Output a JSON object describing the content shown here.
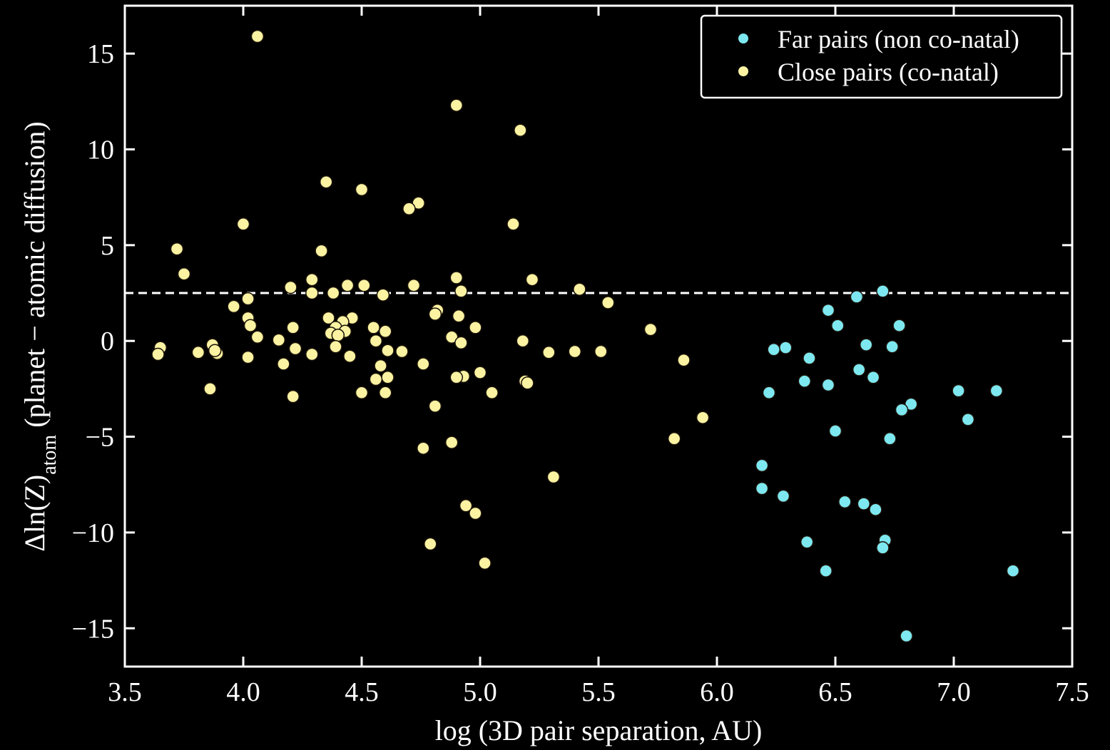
{
  "chart_data": {
    "type": "scatter",
    "title": "",
    "xlabel": "log (3D pair separation, AU)",
    "ylabel_parts": {
      "prefix": "Δln(Z)",
      "subscript": "atom",
      "suffix": " (planet − atomic diffusion)"
    },
    "xlim": [
      3.5,
      7.5
    ],
    "ylim": [
      -17,
      17.5
    ],
    "xticks": [
      3.5,
      4.0,
      4.5,
      5.0,
      5.5,
      6.0,
      6.5,
      7.0,
      7.5
    ],
    "xtick_labels": [
      "3.5",
      "4.0",
      "4.5",
      "5.0",
      "5.5",
      "6.0",
      "6.5",
      "7.0",
      "7.5"
    ],
    "yticks": [
      -15,
      -10,
      -5,
      0,
      5,
      10,
      15
    ],
    "ytick_labels": [
      "−15",
      "−10",
      "−5",
      "0",
      "5",
      "10",
      "15"
    ],
    "reference_line": {
      "y": 2.5,
      "style": "dashed"
    },
    "legend_position": "top-right",
    "series": [
      {
        "name": "Far pairs (non co-natal)",
        "color": "#7ee8f0",
        "points": [
          [
            6.7,
            2.6
          ],
          [
            6.59,
            2.3
          ],
          [
            6.47,
            1.6
          ],
          [
            6.51,
            0.8
          ],
          [
            6.77,
            0.8
          ],
          [
            6.63,
            -0.2
          ],
          [
            6.74,
            -0.3
          ],
          [
            6.29,
            -0.35
          ],
          [
            6.24,
            -0.45
          ],
          [
            6.39,
            -0.9
          ],
          [
            6.6,
            -1.5
          ],
          [
            6.37,
            -2.1
          ],
          [
            6.47,
            -2.3
          ],
          [
            6.66,
            -1.9
          ],
          [
            6.22,
            -2.7
          ],
          [
            7.02,
            -2.6
          ],
          [
            7.18,
            -2.6
          ],
          [
            6.82,
            -3.3
          ],
          [
            6.78,
            -3.6
          ],
          [
            7.06,
            -4.1
          ],
          [
            6.5,
            -4.7
          ],
          [
            6.73,
            -5.1
          ],
          [
            6.19,
            -6.5
          ],
          [
            6.19,
            -7.7
          ],
          [
            6.28,
            -8.1
          ],
          [
            6.54,
            -8.4
          ],
          [
            6.62,
            -8.5
          ],
          [
            6.67,
            -8.8
          ],
          [
            6.38,
            -10.5
          ],
          [
            6.71,
            -10.4
          ],
          [
            6.7,
            -10.8
          ],
          [
            6.46,
            -12.0
          ],
          [
            7.25,
            -12.0
          ],
          [
            6.8,
            -15.4
          ]
        ]
      },
      {
        "name": "Close pairs (co-natal)",
        "color": "#fbf3a2",
        "points": [
          [
            4.06,
            15.9
          ],
          [
            4.9,
            12.3
          ],
          [
            5.17,
            11.0
          ],
          [
            4.35,
            8.3
          ],
          [
            4.5,
            7.9
          ],
          [
            4.74,
            7.2
          ],
          [
            4.7,
            6.9
          ],
          [
            4.0,
            6.1
          ],
          [
            5.14,
            6.1
          ],
          [
            3.72,
            4.8
          ],
          [
            4.33,
            4.7
          ],
          [
            3.75,
            3.5
          ],
          [
            4.9,
            3.3
          ],
          [
            4.29,
            3.2
          ],
          [
            5.22,
            3.2
          ],
          [
            4.44,
            2.9
          ],
          [
            4.51,
            2.9
          ],
          [
            4.72,
            2.9
          ],
          [
            4.2,
            2.8
          ],
          [
            5.42,
            2.7
          ],
          [
            4.92,
            2.6
          ],
          [
            4.29,
            2.5
          ],
          [
            4.38,
            2.5
          ],
          [
            4.59,
            2.4
          ],
          [
            4.02,
            2.2
          ],
          [
            5.54,
            2.0
          ],
          [
            3.96,
            1.8
          ],
          [
            4.82,
            1.6
          ],
          [
            4.81,
            1.4
          ],
          [
            4.02,
            1.2
          ],
          [
            4.36,
            1.2
          ],
          [
            4.46,
            1.2
          ],
          [
            4.91,
            1.3
          ],
          [
            4.42,
            1.0
          ],
          [
            4.03,
            0.8
          ],
          [
            4.21,
            0.7
          ],
          [
            4.39,
            0.7
          ],
          [
            4.55,
            0.7
          ],
          [
            4.98,
            0.7
          ],
          [
            5.72,
            0.6
          ],
          [
            4.43,
            0.5
          ],
          [
            4.6,
            0.5
          ],
          [
            4.37,
            0.4
          ],
          [
            4.4,
            0.3
          ],
          [
            4.06,
            0.2
          ],
          [
            4.88,
            0.2
          ],
          [
            4.15,
            0.05
          ],
          [
            4.56,
            0.0
          ],
          [
            5.18,
            0.0
          ],
          [
            4.92,
            -0.1
          ],
          [
            3.87,
            -0.2
          ],
          [
            4.39,
            -0.3
          ],
          [
            3.65,
            -0.35
          ],
          [
            4.22,
            -0.4
          ],
          [
            4.61,
            -0.5
          ],
          [
            4.67,
            -0.55
          ],
          [
            3.81,
            -0.6
          ],
          [
            3.89,
            -0.65
          ],
          [
            5.29,
            -0.6
          ],
          [
            5.4,
            -0.55
          ],
          [
            5.51,
            -0.55
          ],
          [
            3.88,
            -0.5
          ],
          [
            3.64,
            -0.7
          ],
          [
            4.29,
            -0.7
          ],
          [
            4.02,
            -0.85
          ],
          [
            4.45,
            -0.8
          ],
          [
            5.86,
            -1.0
          ],
          [
            4.17,
            -1.2
          ],
          [
            4.76,
            -1.2
          ],
          [
            4.58,
            -1.3
          ],
          [
            5.0,
            -1.65
          ],
          [
            4.93,
            -1.85
          ],
          [
            4.61,
            -1.9
          ],
          [
            4.9,
            -1.9
          ],
          [
            4.56,
            -2.0
          ],
          [
            5.19,
            -2.1
          ],
          [
            5.2,
            -2.2
          ],
          [
            3.86,
            -2.5
          ],
          [
            4.5,
            -2.7
          ],
          [
            4.6,
            -2.7
          ],
          [
            5.05,
            -2.7
          ],
          [
            4.21,
            -2.9
          ],
          [
            4.81,
            -3.4
          ],
          [
            5.94,
            -4.0
          ],
          [
            5.82,
            -5.1
          ],
          [
            4.88,
            -5.3
          ],
          [
            4.76,
            -5.6
          ],
          [
            5.31,
            -7.1
          ],
          [
            4.94,
            -8.6
          ],
          [
            4.98,
            -9.0
          ],
          [
            4.79,
            -10.6
          ],
          [
            5.02,
            -11.6
          ]
        ]
      }
    ]
  }
}
